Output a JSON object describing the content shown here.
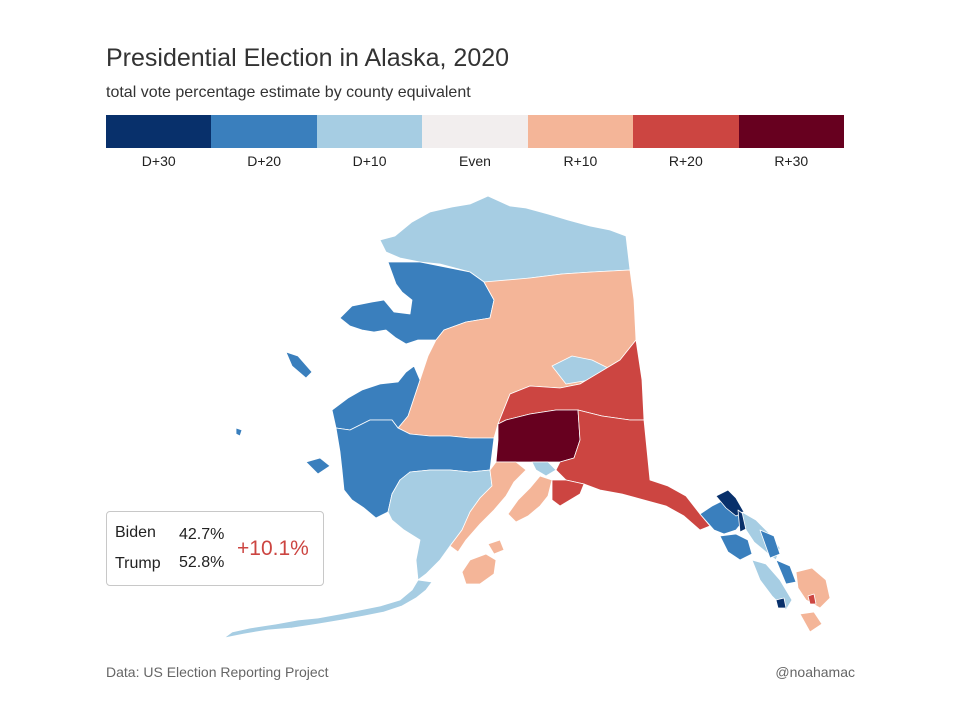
{
  "title": "Presidential Election in Alaska, 2020",
  "subtitle": "total vote percentage estimate by county equivalent",
  "legend": [
    {
      "label": "D+30",
      "color": "#08306b"
    },
    {
      "label": "D+20",
      "color": "#3a7fbd"
    },
    {
      "label": "D+10",
      "color": "#a6cde3"
    },
    {
      "label": "Even",
      "color": "#f2eeee"
    },
    {
      "label": "R+10",
      "color": "#f4b598"
    },
    {
      "label": "R+20",
      "color": "#cc4541"
    },
    {
      "label": "R+30",
      "color": "#67001f"
    }
  ],
  "result": {
    "candidates": [
      {
        "name": "Biden",
        "percent": "42.7%"
      },
      {
        "name": "Trump",
        "percent": "52.8%"
      }
    ],
    "margin": "+10.1%",
    "margin_color": "#cc4541"
  },
  "source": "Data: US Election Reporting Project",
  "credit": "@noahamac"
}
